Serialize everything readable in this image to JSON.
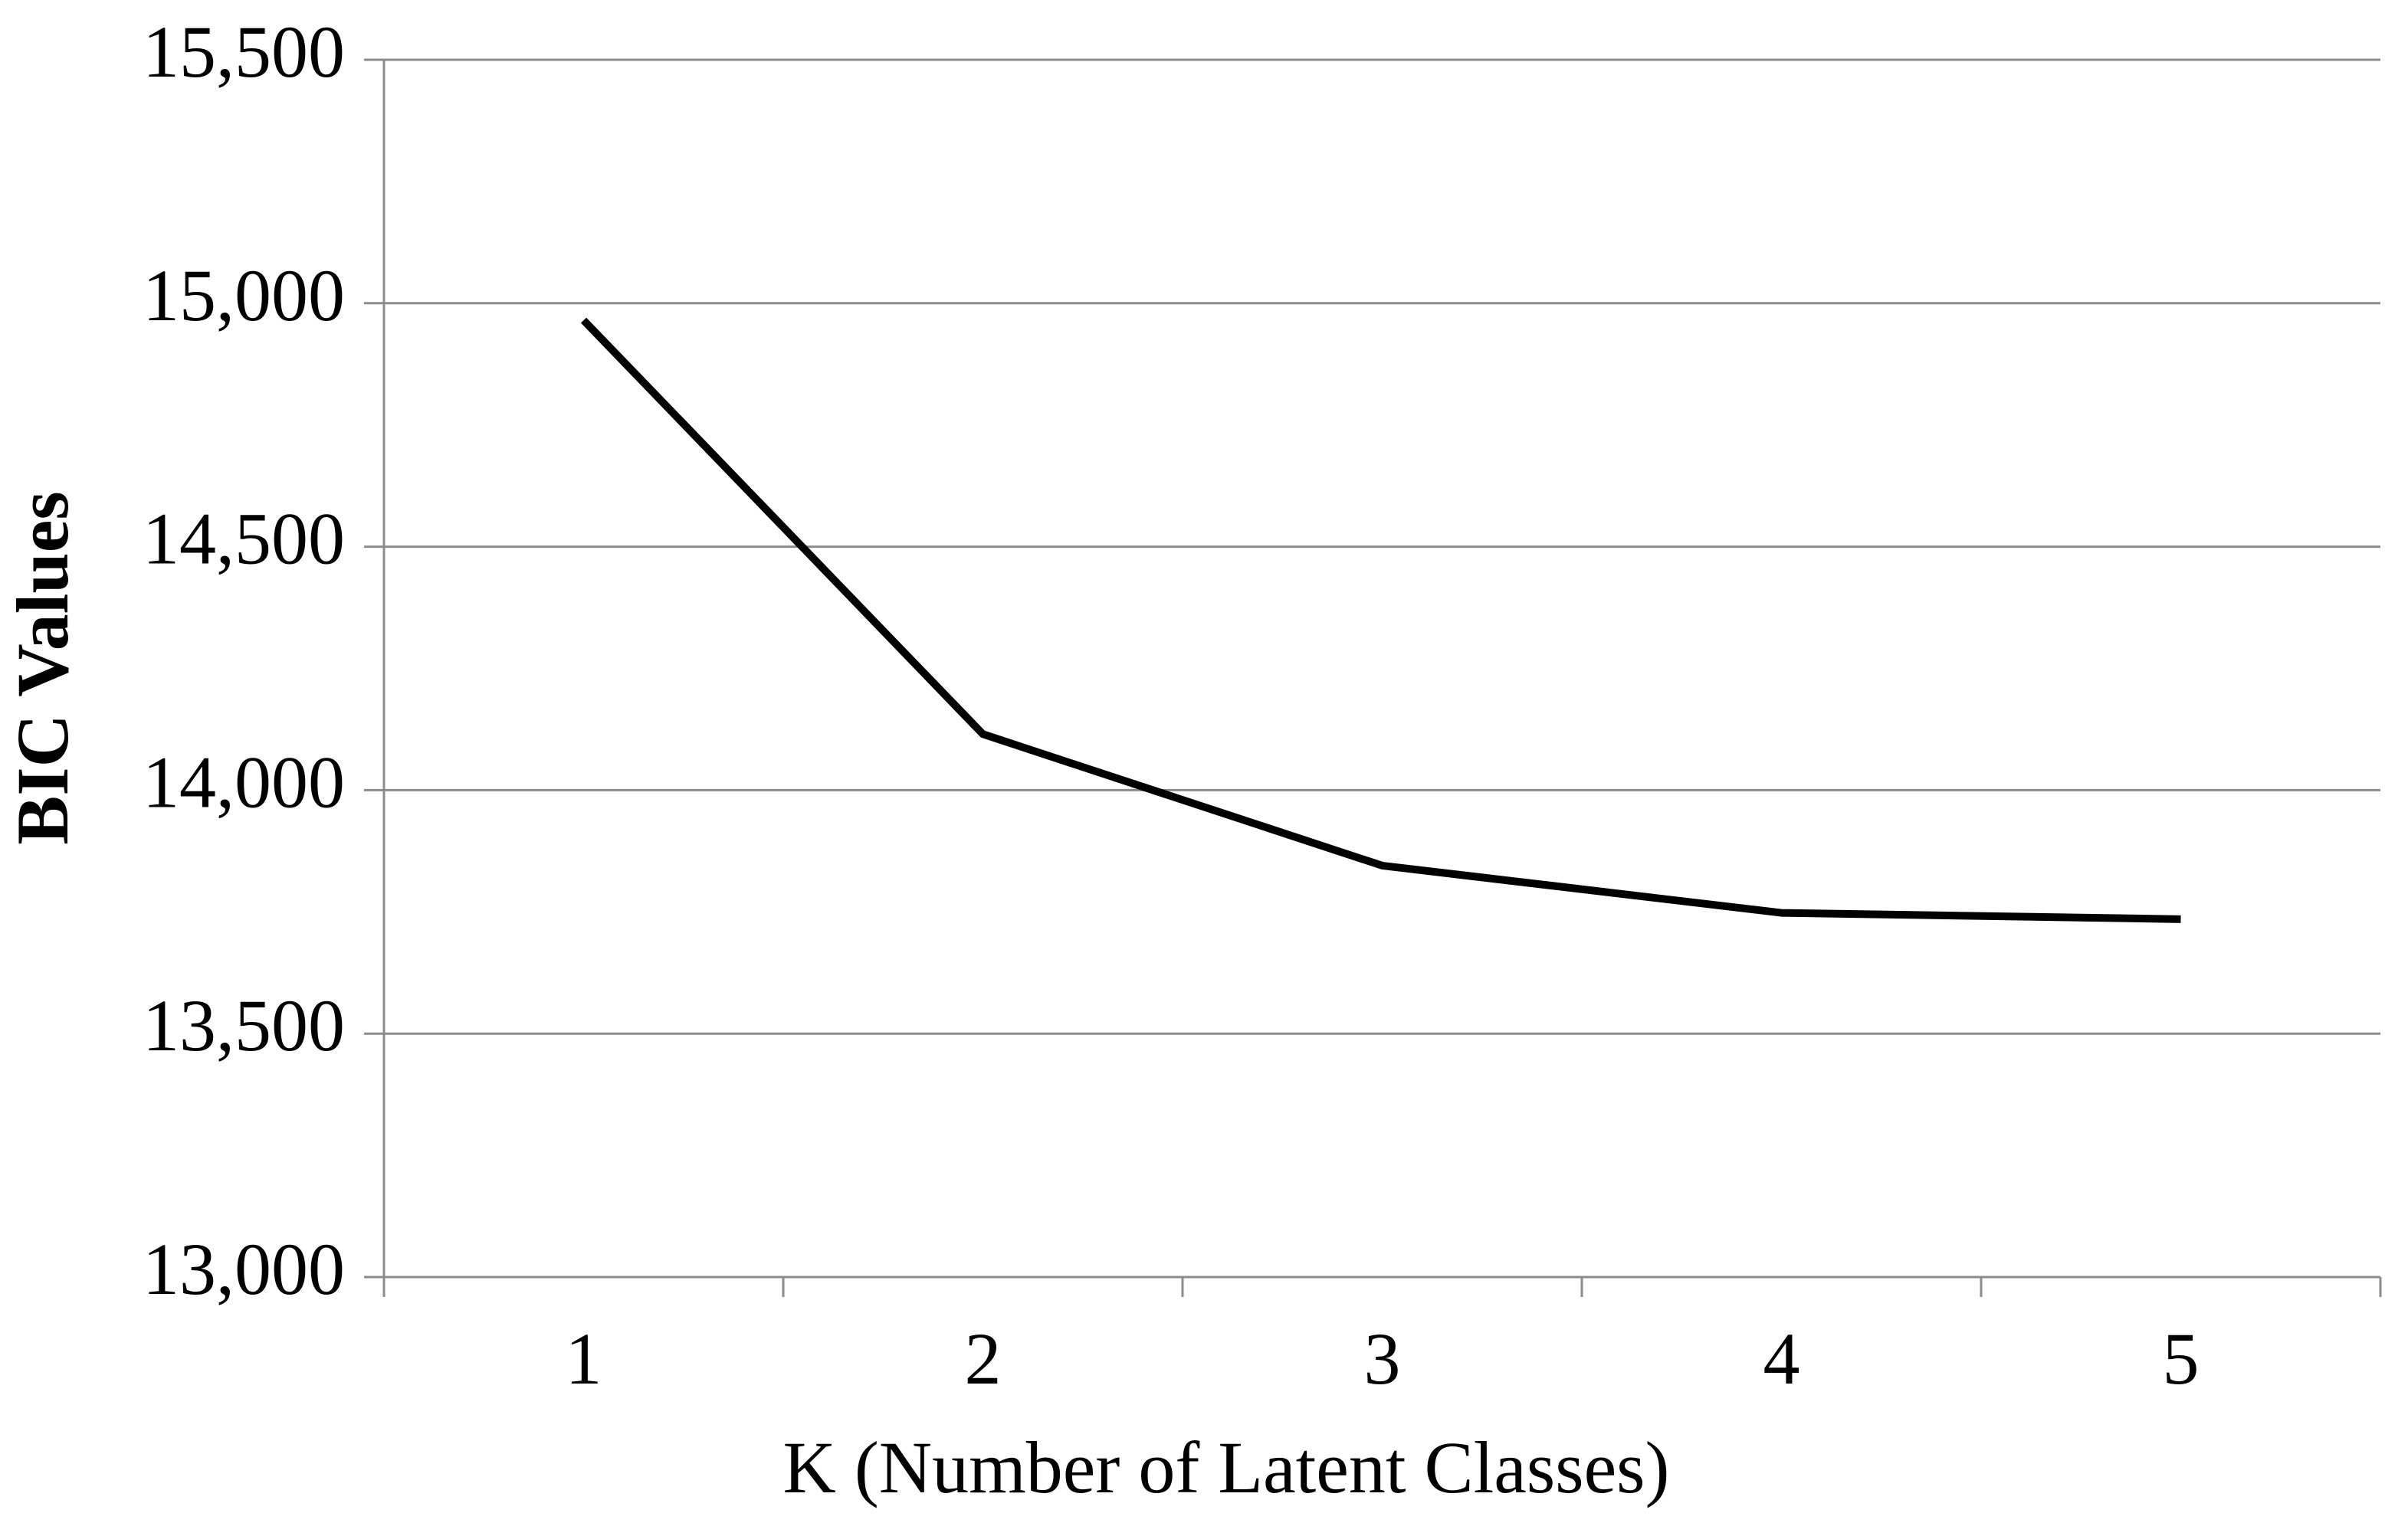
{
  "chart_data": {
    "type": "line",
    "x_label": "K (Number of Latent Classes)",
    "y_label": "BIC Values",
    "categories": [
      "1",
      "2",
      "3",
      "4",
      "5"
    ],
    "values": [
      14965,
      14115,
      13845,
      13748,
      13735
    ],
    "color": "#000000",
    "ylim": [
      13000,
      15500
    ],
    "yticks": [
      {
        "value": 13000,
        "label": "13,000"
      },
      {
        "value": 13500,
        "label": "13,500"
      },
      {
        "value": 14000,
        "label": "14,000"
      },
      {
        "value": 14500,
        "label": "14,500"
      },
      {
        "value": 15000,
        "label": "15,000"
      },
      {
        "value": 15500,
        "label": "15,500"
      }
    ],
    "grid": true
  }
}
